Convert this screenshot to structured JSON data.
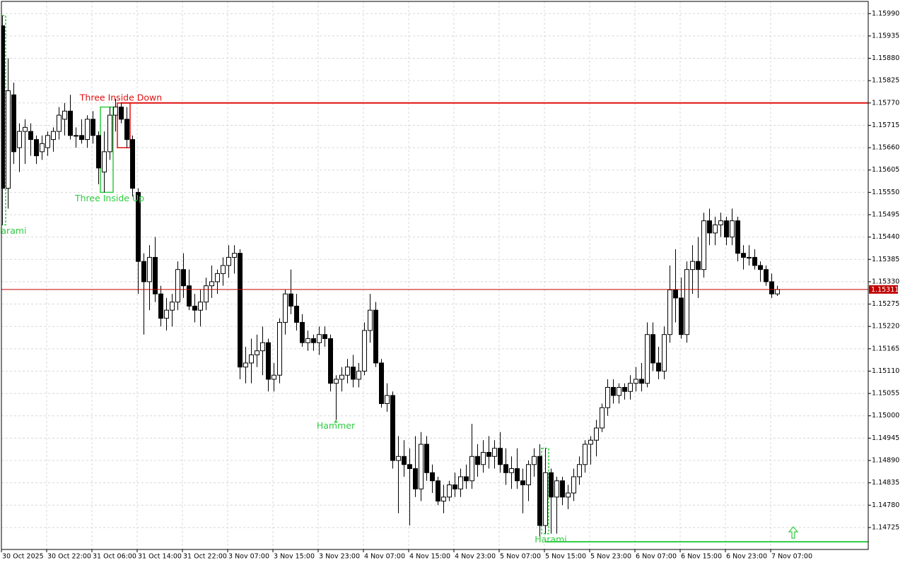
{
  "chart_data": {
    "type": "candlestick",
    "categories": [
      "30 Oct 2025",
      null,
      null,
      null,
      null,
      null,
      null,
      null,
      "30 Oct 22:00",
      null,
      null,
      null,
      null,
      null,
      null,
      null,
      "31 Oct 06:00",
      null,
      null,
      null,
      null,
      null,
      null,
      null,
      "31 Oct 14:00",
      null,
      null,
      null,
      null,
      null,
      null,
      null,
      "31 Oct 22:00",
      null,
      null,
      null,
      null,
      null,
      null,
      null,
      "3 Nov 07:00",
      null,
      null,
      null,
      null,
      null,
      null,
      null,
      "3 Nov 15:00",
      null,
      null,
      null,
      null,
      null,
      null,
      null,
      "3 Nov 23:00",
      null,
      null,
      null,
      null,
      null,
      null,
      null,
      "4 Nov 07:00",
      null,
      null,
      null,
      null,
      null,
      null,
      null,
      "4 Nov 15:00",
      null,
      null,
      null,
      null,
      null,
      null,
      null,
      "4 Nov 23:00",
      null,
      null,
      null,
      null,
      null,
      null,
      null,
      "5 Nov 07:00",
      null,
      null,
      null,
      null,
      null,
      null,
      null,
      "5 Nov 15:00",
      null,
      null,
      null,
      null,
      null,
      null,
      null,
      "5 Nov 23:00",
      null,
      null,
      null,
      null,
      null,
      null,
      null,
      "6 Nov 07:00",
      null,
      null,
      null,
      null,
      null,
      null,
      null,
      "6 Nov 15:00",
      null,
      null,
      null,
      null,
      null,
      null,
      null,
      "6 Nov 23:00",
      null,
      null,
      null,
      null,
      null,
      null,
      null,
      "7 Nov 07:00",
      null
    ],
    "candles": [
      [
        1.1596,
        1.15985,
        1.1547,
        1.1556
      ],
      [
        1.1556,
        1.1588,
        1.1551,
        1.158
      ],
      [
        1.1579,
        1.1582,
        1.1562,
        1.1565
      ],
      [
        1.1566,
        1.1572,
        1.156,
        1.157
      ],
      [
        1.157,
        1.1573,
        1.1562,
        1.1571
      ],
      [
        1.157,
        1.1572,
        1.1564,
        1.1568
      ],
      [
        1.1568,
        1.1569,
        1.1562,
        1.1564
      ],
      [
        1.1565,
        1.1569,
        1.1563,
        1.1567
      ],
      [
        1.1566,
        1.157,
        1.1564,
        1.1569
      ],
      [
        1.1568,
        1.1571,
        1.1565,
        1.157
      ],
      [
        1.157,
        1.1576,
        1.1568,
        1.1574
      ],
      [
        1.1573,
        1.1577,
        1.1569,
        1.1575
      ],
      [
        1.1575,
        1.1579,
        1.1568,
        1.1569
      ],
      [
        1.1569,
        1.1571,
        1.1566,
        1.1569
      ],
      [
        1.1569,
        1.1573,
        1.1567,
        1.1568
      ],
      [
        1.1568,
        1.1574,
        1.1566,
        1.1573
      ],
      [
        1.1573,
        1.1575,
        1.1567,
        1.1569
      ],
      [
        1.1569,
        1.157,
        1.1557,
        1.1561
      ],
      [
        1.156,
        1.157,
        1.1555,
        1.1565
      ],
      [
        1.1565,
        1.1576,
        1.1563,
        1.1574
      ],
      [
        1.1574,
        1.1578,
        1.157,
        1.1576
      ],
      [
        1.1576,
        1.1577,
        1.1572,
        1.1573
      ],
      [
        1.1573,
        1.1576,
        1.1566,
        1.1568
      ],
      [
        1.1568,
        1.1569,
        1.1554,
        1.1556
      ],
      [
        1.1555,
        1.1556,
        1.153,
        1.1538
      ],
      [
        1.1538,
        1.154,
        1.152,
        1.1533
      ],
      [
        1.1533,
        1.1542,
        1.1526,
        1.1539
      ],
      [
        1.1539,
        1.1544,
        1.1528,
        1.153
      ],
      [
        1.153,
        1.1532,
        1.1522,
        1.1524
      ],
      [
        1.1524,
        1.1529,
        1.1521,
        1.1526
      ],
      [
        1.1526,
        1.153,
        1.1522,
        1.1528
      ],
      [
        1.1528,
        1.1538,
        1.1526,
        1.1536
      ],
      [
        1.1536,
        1.154,
        1.1529,
        1.1532
      ],
      [
        1.1532,
        1.1536,
        1.1526,
        1.1527
      ],
      [
        1.1527,
        1.153,
        1.1523,
        1.1526
      ],
      [
        1.1526,
        1.1531,
        1.1522,
        1.1528
      ],
      [
        1.1528,
        1.1534,
        1.1526,
        1.1532
      ],
      [
        1.1532,
        1.1537,
        1.1529,
        1.1533
      ],
      [
        1.1533,
        1.1536,
        1.153,
        1.1535
      ],
      [
        1.1535,
        1.1539,
        1.1532,
        1.1537
      ],
      [
        1.1537,
        1.1542,
        1.1534,
        1.1539
      ],
      [
        1.1539,
        1.1542,
        1.1535,
        1.154
      ],
      [
        1.154,
        1.1541,
        1.1509,
        1.1512
      ],
      [
        1.1512,
        1.1517,
        1.1508,
        1.1513
      ],
      [
        1.1513,
        1.1519,
        1.1508,
        1.1515
      ],
      [
        1.1515,
        1.152,
        1.1512,
        1.1516
      ],
      [
        1.1516,
        1.1522,
        1.151,
        1.1518
      ],
      [
        1.1518,
        1.1519,
        1.1506,
        1.1509
      ],
      [
        1.1509,
        1.1513,
        1.1506,
        1.151
      ],
      [
        1.151,
        1.1524,
        1.1508,
        1.1523
      ],
      [
        1.1523,
        1.1531,
        1.152,
        1.153
      ],
      [
        1.153,
        1.1536,
        1.1525,
        1.1527
      ],
      [
        1.1527,
        1.153,
        1.1521,
        1.1523
      ],
      [
        1.1523,
        1.1525,
        1.1517,
        1.1518
      ],
      [
        1.1518,
        1.1521,
        1.1516,
        1.1519
      ],
      [
        1.1519,
        1.152,
        1.1516,
        1.1518
      ],
      [
        1.1518,
        1.1522,
        1.1515,
        1.152
      ],
      [
        1.152,
        1.1522,
        1.1517,
        1.1519
      ],
      [
        1.1519,
        1.152,
        1.1506,
        1.1508
      ],
      [
        1.1508,
        1.151,
        1.1499,
        1.1509
      ],
      [
        1.1509,
        1.1512,
        1.1506,
        1.151
      ],
      [
        1.151,
        1.1514,
        1.1508,
        1.1512
      ],
      [
        1.1512,
        1.1515,
        1.1507,
        1.1509
      ],
      [
        1.1509,
        1.1513,
        1.1507,
        1.1511
      ],
      [
        1.1511,
        1.1523,
        1.151,
        1.1521
      ],
      [
        1.1521,
        1.153,
        1.1518,
        1.1526
      ],
      [
        1.1526,
        1.1528,
        1.1512,
        1.1513
      ],
      [
        1.1513,
        1.1514,
        1.1502,
        1.1503
      ],
      [
        1.1503,
        1.1508,
        1.1501,
        1.1505
      ],
      [
        1.1505,
        1.1506,
        1.1487,
        1.1489
      ],
      [
        1.1489,
        1.1495,
        1.1476,
        1.149
      ],
      [
        1.149,
        1.1494,
        1.1485,
        1.1488
      ],
      [
        1.1488,
        1.1492,
        1.1473,
        1.1487
      ],
      [
        1.1487,
        1.1495,
        1.148,
        1.1482
      ],
      [
        1.1482,
        1.1496,
        1.1479,
        1.1493
      ],
      [
        1.1493,
        1.1495,
        1.1484,
        1.1486
      ],
      [
        1.1486,
        1.1488,
        1.1481,
        1.1484
      ],
      [
        1.1484,
        1.1485,
        1.1478,
        1.1479
      ],
      [
        1.1479,
        1.1483,
        1.1476,
        1.148
      ],
      [
        1.148,
        1.1484,
        1.1479,
        1.1483
      ],
      [
        1.1483,
        1.1486,
        1.148,
        1.1482
      ],
      [
        1.1482,
        1.1487,
        1.148,
        1.1485
      ],
      [
        1.1485,
        1.1488,
        1.1482,
        1.1484
      ],
      [
        1.1484,
        1.1498,
        1.1482,
        1.149
      ],
      [
        1.149,
        1.1493,
        1.1485,
        1.1488
      ],
      [
        1.1488,
        1.1494,
        1.1486,
        1.1491
      ],
      [
        1.1491,
        1.1495,
        1.1487,
        1.149
      ],
      [
        1.149,
        1.1494,
        1.1487,
        1.1492
      ],
      [
        1.1492,
        1.1496,
        1.1486,
        1.1488
      ],
      [
        1.1488,
        1.1492,
        1.1483,
        1.1486
      ],
      [
        1.1486,
        1.149,
        1.1482,
        1.1487
      ],
      [
        1.1487,
        1.1492,
        1.1482,
        1.1484
      ],
      [
        1.1484,
        1.1487,
        1.1476,
        1.1483
      ],
      [
        1.1483,
        1.1489,
        1.1479,
        1.1488
      ],
      [
        1.1488,
        1.1492,
        1.1485,
        1.149
      ],
      [
        1.149,
        1.1493,
        1.147,
        1.1473
      ],
      [
        1.1473,
        1.1492,
        1.1471,
        1.1486
      ],
      [
        1.1486,
        1.1487,
        1.1471,
        1.148
      ],
      [
        1.148,
        1.1485,
        1.1471,
        1.1484
      ],
      [
        1.1484,
        1.1485,
        1.1478,
        1.148
      ],
      [
        1.148,
        1.1483,
        1.1477,
        1.1481
      ],
      [
        1.1481,
        1.1487,
        1.1479,
        1.1485
      ],
      [
        1.1485,
        1.149,
        1.1483,
        1.1488
      ],
      [
        1.1488,
        1.1494,
        1.1486,
        1.1493
      ],
      [
        1.1493,
        1.1495,
        1.1488,
        1.1494
      ],
      [
        1.1494,
        1.1499,
        1.149,
        1.1497
      ],
      [
        1.1497,
        1.1503,
        1.1496,
        1.1502
      ],
      [
        1.1502,
        1.1509,
        1.15,
        1.1507
      ],
      [
        1.1507,
        1.1509,
        1.1503,
        1.1505
      ],
      [
        1.1505,
        1.1508,
        1.1503,
        1.1507
      ],
      [
        1.1507,
        1.1508,
        1.1504,
        1.1506
      ],
      [
        1.1506,
        1.151,
        1.1504,
        1.1508
      ],
      [
        1.1508,
        1.1512,
        1.1506,
        1.1509
      ],
      [
        1.1509,
        1.1513,
        1.1506,
        1.1508
      ],
      [
        1.1508,
        1.1523,
        1.1507,
        1.152
      ],
      [
        1.152,
        1.1523,
        1.1511,
        1.1513
      ],
      [
        1.1513,
        1.1517,
        1.1509,
        1.1511
      ],
      [
        1.1511,
        1.1522,
        1.1509,
        1.152
      ],
      [
        1.152,
        1.1537,
        1.1518,
        1.1531
      ],
      [
        1.1531,
        1.1541,
        1.1523,
        1.1529
      ],
      [
        1.1529,
        1.1534,
        1.1519,
        1.152
      ],
      [
        1.152,
        1.1538,
        1.1518,
        1.1536
      ],
      [
        1.1536,
        1.1542,
        1.153,
        1.1538
      ],
      [
        1.1538,
        1.1544,
        1.1529,
        1.1536
      ],
      [
        1.1536,
        1.155,
        1.1534,
        1.1548
      ],
      [
        1.1548,
        1.1551,
        1.1542,
        1.1545
      ],
      [
        1.1545,
        1.1549,
        1.1542,
        1.1547
      ],
      [
        1.1547,
        1.155,
        1.1544,
        1.1548
      ],
      [
        1.1548,
        1.1549,
        1.1542,
        1.1544
      ],
      [
        1.1544,
        1.1551,
        1.1542,
        1.1548
      ],
      [
        1.1548,
        1.1549,
        1.1538,
        1.154
      ],
      [
        1.154,
        1.1542,
        1.1536,
        1.1539
      ],
      [
        1.1539,
        1.1542,
        1.1537,
        1.1539
      ],
      [
        1.1539,
        1.1541,
        1.1536,
        1.1537
      ],
      [
        1.1537,
        1.1538,
        1.1533,
        1.1536
      ],
      [
        1.1536,
        1.1537,
        1.1532,
        1.1533
      ],
      [
        1.1533,
        1.1535,
        1.1529,
        1.153
      ],
      [
        1.153,
        1.1532,
        1.15295,
        1.15311
      ]
    ],
    "up_color": "#ffffff",
    "down_color": "#000000",
    "ylim": [
      1.14671,
      1.1602
    ],
    "yticks": [
      {
        "value": 1.1599,
        "label": "1.15990"
      },
      1.15935,
      {
        "value": 1.1588,
        "label": "1.15880"
      },
      1.15825,
      {
        "value": 1.1577,
        "label": "1.15770"
      },
      1.15715,
      {
        "value": 1.1566,
        "label": "1.15660"
      },
      1.15605,
      {
        "value": 1.1555,
        "label": "1.15550"
      },
      1.15495,
      {
        "value": 1.1544,
        "label": "1.15440"
      },
      1.15385,
      {
        "value": 1.1533,
        "label": "1.15330"
      },
      1.15275,
      {
        "value": 1.1522,
        "label": "1.15220"
      },
      1.15165,
      {
        "value": 1.1511,
        "label": "1.15110"
      },
      1.15055,
      {
        "value": 1.15,
        "label": "1.15000"
      },
      1.14945,
      {
        "value": 1.1489,
        "label": "1.14890"
      },
      1.14835,
      {
        "value": 1.1478,
        "label": "1.14780"
      },
      1.14725
    ],
    "grid": true,
    "last_price": 1.15311,
    "last_price_color": "#c00000",
    "levels": [
      {
        "value": 1.1577,
        "color": "#e01010"
      },
      {
        "value": 1.1469,
        "color": "#2ecc40"
      }
    ],
    "patterns": [
      {
        "text": "Harami",
        "color": "#2ecc40"
      },
      {
        "text": "Three Inside Up",
        "color": "#2ecc40"
      },
      {
        "text": "Three Inside Down",
        "color": "#e01010"
      },
      {
        "text": "Hammer",
        "color": "#2ecc40"
      },
      {
        "text": "Harami",
        "color": "#2ecc40"
      }
    ]
  }
}
